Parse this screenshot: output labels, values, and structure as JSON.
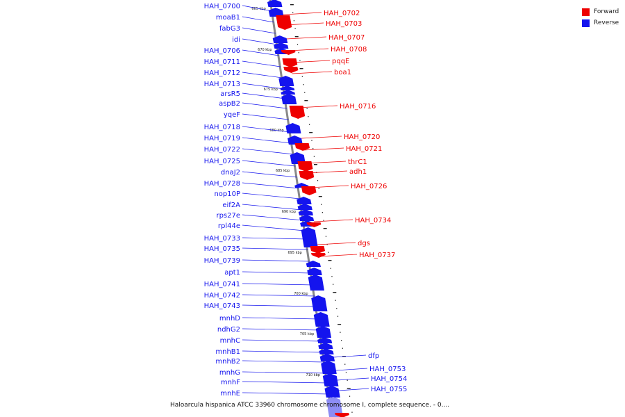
{
  "legend": {
    "forward": {
      "label": "Forward",
      "color": "#ee0000"
    },
    "reverse": {
      "label": "Reverse",
      "color": "#1414ee"
    }
  },
  "caption": "Haloarcula hispanica ATCC 33960 chromosome chromosome I, complete sequence. - 0....",
  "scale_ticks": [
    "665 kbp",
    "670 kbp",
    "675 kbp",
    "680 kbp",
    "685 kbp",
    "690 kbp",
    "695 kbp",
    "700 kbp",
    "705 kbp",
    "710 kbp"
  ],
  "genes_reverse": [
    "HAH_0700",
    "moaB1",
    "fabG3",
    "idi",
    "HAH_0706",
    "HAH_0711",
    "HAH_0712",
    "HAH_0713",
    "arsR5",
    "aspB2",
    "yqeF",
    "HAH_0718",
    "HAH_0719",
    "HAH_0722",
    "HAH_0725",
    "dnaJ2",
    "HAH_0728",
    "nop10P",
    "eif2A",
    "rps27e",
    "rpl44e",
    "HAH_0733",
    "HAH_0735",
    "HAH_0739",
    "apt1",
    "HAH_0741",
    "HAH_0742",
    "HAH_0743",
    "mnhD",
    "ndhG2",
    "mnhC",
    "mnhB1",
    "mnhB2",
    "mnhG",
    "mnhF",
    "mnhE"
  ],
  "genes_forward": [
    "HAH_0702",
    "HAH_0703",
    "HAH_0707",
    "HAH_0708",
    "pqqE",
    "boa1",
    "HAH_0716",
    "HAH_0720",
    "HAH_0721",
    "thrC1",
    "adh1",
    "HAH_0726",
    "HAH_0734",
    "dgs",
    "HAH_0737",
    "dfp",
    "HAH_0753",
    "HAH_0754",
    "HAH_0755"
  ]
}
